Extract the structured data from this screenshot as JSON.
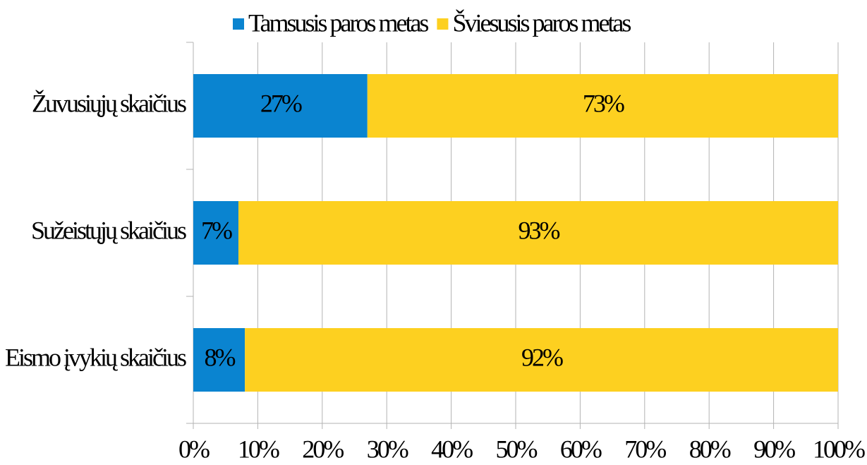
{
  "chart_data": {
    "type": "stacked-barh",
    "categories": [
      "Žuvusiųjų skaičius",
      "Sužeistųjų skaičius",
      "Eismo įvykių skaičius"
    ],
    "series": [
      {
        "name": "Tamsusis paros metas",
        "color": "#0a84d0",
        "values": [
          27,
          7,
          8
        ],
        "value_labels": [
          "27%",
          "7%",
          "8%"
        ]
      },
      {
        "name": "Šviesusis paros metas",
        "color": "#fdd020",
        "values": [
          73,
          93,
          92
        ],
        "value_labels": [
          "73%",
          "93%",
          "92%"
        ]
      }
    ],
    "xlim": [
      0,
      100
    ],
    "xticks": [
      {
        "value": 0,
        "label": "0%"
      },
      {
        "value": 10,
        "label": "10%"
      },
      {
        "value": 20,
        "label": "20%"
      },
      {
        "value": 30,
        "label": "30%"
      },
      {
        "value": 40,
        "label": "40%"
      },
      {
        "value": 50,
        "label": "50%"
      },
      {
        "value": 60,
        "label": "60%"
      },
      {
        "value": 70,
        "label": "70%"
      },
      {
        "value": 80,
        "label": "80%"
      },
      {
        "value": 90,
        "label": "90%"
      },
      {
        "value": 100,
        "label": "100%"
      }
    ],
    "grid": true,
    "legend": "top"
  }
}
